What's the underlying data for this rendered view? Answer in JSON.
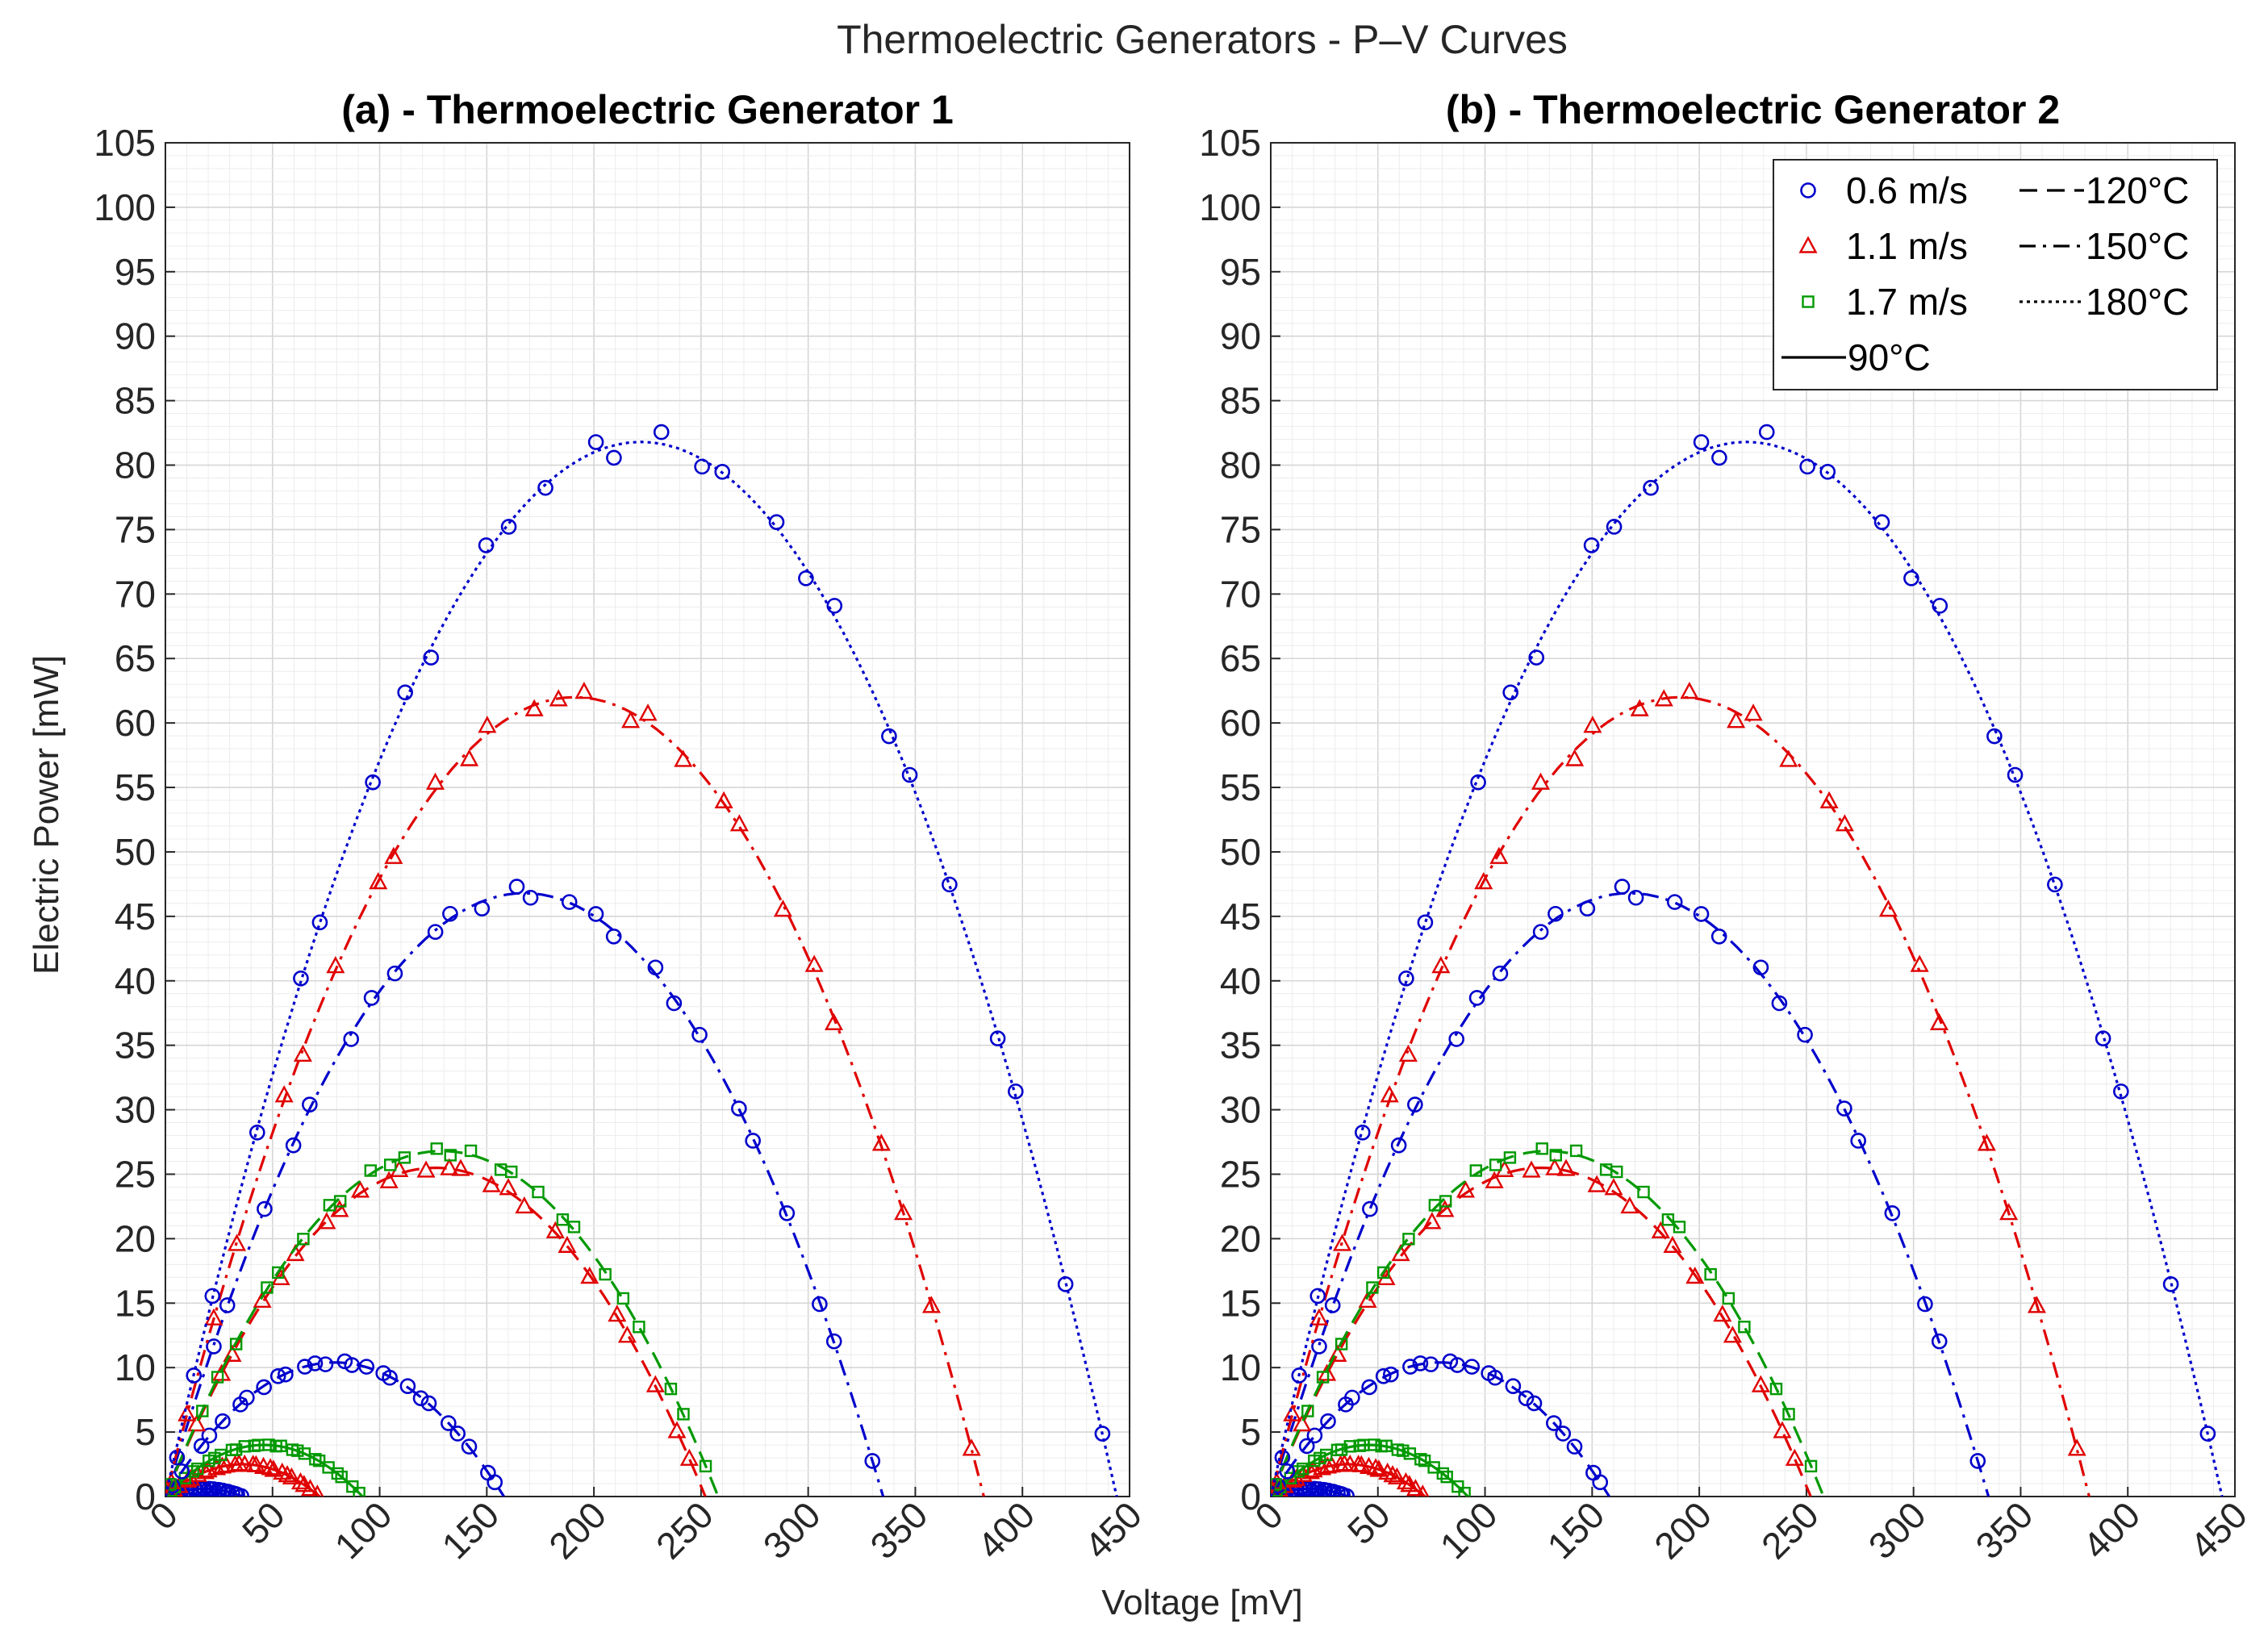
{
  "figure": {
    "title": "Thermoelectric Generators - P–V Curves",
    "xlabel": "Voltage [mV]",
    "ylabel": "Electric Power [mW]"
  },
  "colors": {
    "0.6": "#0000cc",
    "1.1": "#e00000",
    "1.7": "#009900"
  },
  "legend": {
    "location": "top-right of panel (b)",
    "markers": [
      {
        "label": "0.6 m/s",
        "marker": "circle",
        "color": "#0000cc"
      },
      {
        "label": "1.1 m/s",
        "marker": "triangle",
        "color": "#e00000"
      },
      {
        "label": "1.7 m/s",
        "marker": "square",
        "color": "#009900"
      }
    ],
    "lines": [
      {
        "label": "120°C",
        "style": "dashed"
      },
      {
        "label": "150°C",
        "style": "dashdot"
      },
      {
        "label": "180°C",
        "style": "dotted"
      },
      {
        "label": "90°C",
        "style": "solid"
      }
    ]
  },
  "chart_data": [
    {
      "type": "scatter",
      "title": "(a) - Thermoelectric Generator 1",
      "xlabel": "Voltage [mV]",
      "ylabel": "Electric Power [mW]",
      "xlim": [
        0,
        450
      ],
      "ylim": [
        0,
        105
      ],
      "xticks": [
        0,
        50,
        100,
        150,
        200,
        250,
        300,
        350,
        400,
        450
      ],
      "yticks": [
        0,
        5,
        10,
        15,
        20,
        25,
        30,
        35,
        40,
        45,
        50,
        55,
        60,
        65,
        70,
        75,
        80,
        85,
        90,
        95,
        100,
        105
      ],
      "grid": "major and minor",
      "series": [
        {
          "name": "0.6 m/s 90°C",
          "speed": "0.6 m/s",
          "temp": "90°C",
          "marker": "circle",
          "line": "solid",
          "voc": 36,
          "pmax": 0.6
        },
        {
          "name": "1.1 m/s 90°C",
          "speed": "1.1 m/s",
          "temp": "90°C",
          "marker": "triangle",
          "line": "solid",
          "voc": 72,
          "pmax": 2.5
        },
        {
          "name": "1.7 m/s 90°C",
          "speed": "1.7 m/s",
          "temp": "90°C",
          "marker": "square",
          "line": "solid",
          "voc": 92,
          "pmax": 4.0
        },
        {
          "name": "0.6 m/s 120°C",
          "speed": "0.6 m/s",
          "temp": "120°C",
          "marker": "circle",
          "line": "dashed",
          "voc": 158,
          "pmax": 10.4
        },
        {
          "name": "1.1 m/s 120°C",
          "speed": "1.1 m/s",
          "temp": "120°C",
          "marker": "triangle",
          "line": "dashed",
          "voc": 252,
          "pmax": 25.5
        },
        {
          "name": "1.7 m/s 120°C",
          "speed": "1.7 m/s",
          "temp": "120°C",
          "marker": "square",
          "line": "dashed",
          "voc": 258,
          "pmax": 26.8
        },
        {
          "name": "0.6 m/s 150°C",
          "speed": "0.6 m/s",
          "temp": "150°C",
          "marker": "circle",
          "line": "dashdot",
          "voc": 335,
          "pmax": 46.8
        },
        {
          "name": "1.1 m/s 150°C",
          "speed": "1.1 m/s",
          "temp": "150°C",
          "marker": "triangle",
          "line": "dashdot",
          "voc": 382,
          "pmax": 62.0
        },
        {
          "name": "0.6 m/s 180°C",
          "speed": "0.6 m/s",
          "temp": "180°C",
          "marker": "circle",
          "line": "dotted",
          "voc": 444,
          "pmax": 81.8
        }
      ]
    },
    {
      "type": "scatter",
      "title": "(b) - Thermoelectric Generator 2",
      "xlabel": "Voltage [mV]",
      "ylabel": "Electric Power [mW]",
      "xlim": [
        0,
        450
      ],
      "ylim": [
        0,
        105
      ],
      "xticks": [
        0,
        50,
        100,
        150,
        200,
        250,
        300,
        350,
        400,
        450
      ],
      "yticks": [
        0,
        5,
        10,
        15,
        20,
        25,
        30,
        35,
        40,
        45,
        50,
        55,
        60,
        65,
        70,
        75,
        80,
        85,
        90,
        95,
        100,
        105
      ],
      "grid": "major and minor",
      "series": [
        {
          "name": "0.6 m/s 90°C",
          "speed": "0.6 m/s",
          "temp": "90°C",
          "marker": "circle",
          "line": "solid",
          "voc": 36,
          "pmax": 0.6
        },
        {
          "name": "1.1 m/s 90°C",
          "speed": "1.1 m/s",
          "temp": "90°C",
          "marker": "triangle",
          "line": "solid",
          "voc": 72,
          "pmax": 2.5
        },
        {
          "name": "1.7 m/s 90°C",
          "speed": "1.7 m/s",
          "temp": "90°C",
          "marker": "square",
          "line": "solid",
          "voc": 92,
          "pmax": 4.0
        },
        {
          "name": "0.6 m/s 120°C",
          "speed": "0.6 m/s",
          "temp": "120°C",
          "marker": "circle",
          "line": "dashed",
          "voc": 158,
          "pmax": 10.4
        },
        {
          "name": "1.1 m/s 120°C",
          "speed": "1.1 m/s",
          "temp": "120°C",
          "marker": "triangle",
          "line": "dashed",
          "voc": 252,
          "pmax": 25.5
        },
        {
          "name": "1.7 m/s 120°C",
          "speed": "1.7 m/s",
          "temp": "120°C",
          "marker": "square",
          "line": "dashed",
          "voc": 258,
          "pmax": 26.8
        },
        {
          "name": "0.6 m/s 150°C",
          "speed": "0.6 m/s",
          "temp": "150°C",
          "marker": "circle",
          "line": "dashdot",
          "voc": 335,
          "pmax": 46.8
        },
        {
          "name": "1.1 m/s 150°C",
          "speed": "1.1 m/s",
          "temp": "150°C",
          "marker": "triangle",
          "line": "dashdot",
          "voc": 382,
          "pmax": 62.0
        },
        {
          "name": "0.6 m/s 180°C",
          "speed": "0.6 m/s",
          "temp": "180°C",
          "marker": "circle",
          "line": "dotted",
          "voc": 444,
          "pmax": 81.8
        }
      ]
    }
  ]
}
